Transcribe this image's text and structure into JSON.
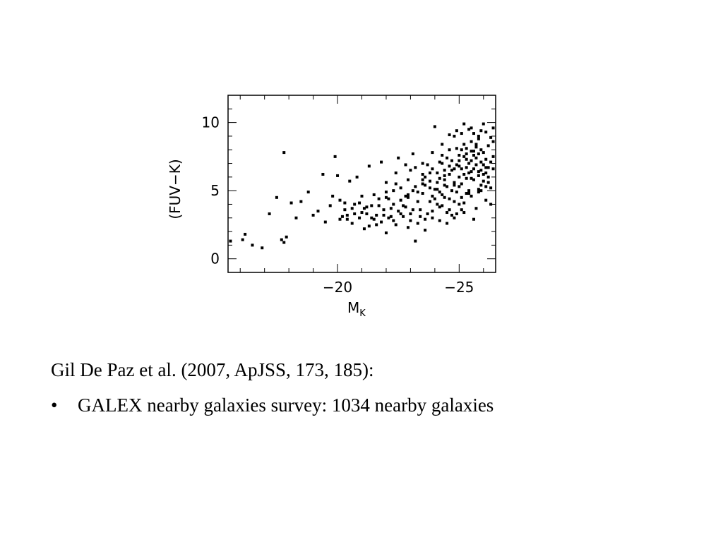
{
  "chart_data": {
    "type": "scatter",
    "title": "",
    "xlabel": "M",
    "xlabel_sub": "K",
    "ylabel": "(FUV−K)",
    "xlim": [
      -15.5,
      -26.5
    ],
    "ylim": [
      -1,
      12
    ],
    "x_ticks": [
      {
        "value": -20,
        "label": "−20"
      },
      {
        "value": -25,
        "label": "−25"
      }
    ],
    "y_ticks": [
      {
        "value": 0,
        "label": "0"
      },
      {
        "value": 5,
        "label": "5"
      },
      {
        "value": 10,
        "label": "10"
      }
    ],
    "minor_x_step": 1,
    "minor_y_step": 1,
    "points": [
      [
        -15.6,
        1.3
      ],
      [
        -16.1,
        1.4
      ],
      [
        -16.2,
        1.8
      ],
      [
        -16.5,
        1.0
      ],
      [
        -16.9,
        0.8
      ],
      [
        -17.2,
        3.3
      ],
      [
        -17.5,
        4.5
      ],
      [
        -17.7,
        1.4
      ],
      [
        -17.8,
        1.2
      ],
      [
        -17.9,
        1.6
      ],
      [
        -17.8,
        7.8
      ],
      [
        -18.1,
        4.1
      ],
      [
        -18.3,
        3.0
      ],
      [
        -18.5,
        4.2
      ],
      [
        -18.8,
        4.9
      ],
      [
        -19.0,
        3.2
      ],
      [
        -19.2,
        3.5
      ],
      [
        -19.4,
        6.2
      ],
      [
        -19.5,
        2.7
      ],
      [
        -19.7,
        3.9
      ],
      [
        -19.9,
        7.5
      ],
      [
        -20.0,
        6.1
      ],
      [
        -20.1,
        4.3
      ],
      [
        -20.2,
        3.1
      ],
      [
        -20.3,
        3.6
      ],
      [
        -20.4,
        2.9
      ],
      [
        -20.5,
        5.7
      ],
      [
        -20.6,
        2.6
      ],
      [
        -20.7,
        3.3
      ],
      [
        -20.8,
        6.0
      ],
      [
        -20.9,
        4.1
      ],
      [
        -21.0,
        3.4
      ],
      [
        -21.1,
        2.2
      ],
      [
        -21.2,
        3.8
      ],
      [
        -21.3,
        6.8
      ],
      [
        -21.4,
        3.0
      ],
      [
        -21.5,
        4.7
      ],
      [
        -21.6,
        2.5
      ],
      [
        -21.7,
        3.9
      ],
      [
        -21.8,
        7.1
      ],
      [
        -21.9,
        3.2
      ],
      [
        -22.0,
        1.9
      ],
      [
        -22.1,
        4.4
      ],
      [
        -22.2,
        3.7
      ],
      [
        -22.3,
        2.8
      ],
      [
        -22.4,
        5.5
      ],
      [
        -22.5,
        7.4
      ],
      [
        -22.6,
        3.3
      ],
      [
        -22.7,
        3.9
      ],
      [
        -22.8,
        4.6
      ],
      [
        -22.9,
        2.3
      ],
      [
        -23.0,
        6.5
      ],
      [
        -23.1,
        3.6
      ],
      [
        -23.2,
        1.3
      ],
      [
        -23.3,
        4.9
      ],
      [
        -23.4,
        3.1
      ],
      [
        -23.5,
        5.8
      ],
      [
        -23.6,
        2.9
      ],
      [
        -23.7,
        6.9
      ],
      [
        -23.8,
        4.2
      ],
      [
        -23.9,
        3.5
      ],
      [
        -24.0,
        9.7
      ],
      [
        -24.1,
        5.1
      ],
      [
        -24.2,
        3.8
      ],
      [
        -24.3,
        7.6
      ],
      [
        -24.4,
        4.5
      ],
      [
        -24.5,
        2.6
      ],
      [
        -24.6,
        6.2
      ],
      [
        -24.7,
        3.2
      ],
      [
        -24.8,
        5.4
      ],
      [
        -24.9,
        8.1
      ],
      [
        -25.0,
        4.0
      ],
      [
        -25.1,
        6.6
      ],
      [
        -25.2,
        3.4
      ],
      [
        -25.3,
        7.3
      ],
      [
        -25.4,
        4.8
      ],
      [
        -25.5,
        5.9
      ],
      [
        -25.6,
        9.2
      ],
      [
        -25.7,
        3.7
      ],
      [
        -25.8,
        6.4
      ],
      [
        -25.9,
        5.0
      ],
      [
        -26.0,
        7.8
      ],
      [
        -26.1,
        4.3
      ],
      [
        -26.2,
        6.7
      ],
      [
        -26.3,
        5.2
      ],
      [
        -26.4,
        9.6
      ],
      [
        -26.5,
        6.0
      ],
      [
        -20.3,
        4.1
      ],
      [
        -20.6,
        3.7
      ],
      [
        -20.9,
        3.0
      ],
      [
        -21.0,
        4.6
      ],
      [
        -21.2,
        3.3
      ],
      [
        -21.4,
        3.9
      ],
      [
        -21.5,
        2.9
      ],
      [
        -21.7,
        4.4
      ],
      [
        -21.9,
        3.6
      ],
      [
        -22.0,
        4.9
      ],
      [
        -22.2,
        3.1
      ],
      [
        -22.3,
        4.0
      ],
      [
        -22.5,
        3.5
      ],
      [
        -22.6,
        5.2
      ],
      [
        -22.8,
        3.8
      ],
      [
        -22.9,
        4.5
      ],
      [
        -23.0,
        2.8
      ],
      [
        -23.1,
        5.0
      ],
      [
        -23.3,
        4.2
      ],
      [
        -23.4,
        3.6
      ],
      [
        -23.5,
        4.8
      ],
      [
        -23.6,
        5.4
      ],
      [
        -23.7,
        3.3
      ],
      [
        -23.8,
        5.7
      ],
      [
        -23.9,
        4.6
      ],
      [
        -24.0,
        5.1
      ],
      [
        -24.1,
        4.0
      ],
      [
        -24.2,
        5.9
      ],
      [
        -24.3,
        4.7
      ],
      [
        -24.4,
        6.1
      ],
      [
        -24.5,
        5.3
      ],
      [
        -24.6,
        4.4
      ],
      [
        -24.7,
        6.5
      ],
      [
        -24.8,
        5.6
      ],
      [
        -24.9,
        4.9
      ],
      [
        -25.0,
        6.8
      ],
      [
        -25.1,
        5.5
      ],
      [
        -25.2,
        6.2
      ],
      [
        -25.3,
        4.8
      ],
      [
        -25.4,
        7.0
      ],
      [
        -25.5,
        6.4
      ],
      [
        -25.6,
        5.8
      ],
      [
        -25.7,
        7.4
      ],
      [
        -25.8,
        6.1
      ],
      [
        -25.9,
        5.4
      ],
      [
        -26.0,
        6.9
      ],
      [
        -26.1,
        6.3
      ],
      [
        -26.2,
        5.6
      ],
      [
        -26.3,
        7.1
      ],
      [
        -26.4,
        6.6
      ],
      [
        -24.3,
        7.0
      ],
      [
        -24.6,
        8.0
      ],
      [
        -24.8,
        9.0
      ],
      [
        -25.0,
        7.6
      ],
      [
        -25.2,
        8.4
      ],
      [
        -25.4,
        9.5
      ],
      [
        -25.6,
        7.9
      ],
      [
        -25.8,
        8.8
      ],
      [
        -26.0,
        9.9
      ],
      [
        -26.2,
        8.3
      ],
      [
        -26.4,
        7.5
      ],
      [
        -25.1,
        9.2
      ],
      [
        -25.5,
        8.6
      ],
      [
        -25.9,
        9.4
      ],
      [
        -26.3,
        8.9
      ],
      [
        -24.9,
        6.9
      ],
      [
        -25.3,
        7.7
      ],
      [
        -25.7,
        8.2
      ],
      [
        -26.1,
        7.3
      ],
      [
        -26.5,
        8.0
      ],
      [
        -23.6,
        6.0
      ],
      [
        -23.9,
        6.6
      ],
      [
        -24.1,
        6.3
      ],
      [
        -24.4,
        5.8
      ],
      [
        -24.7,
        7.2
      ],
      [
        -25.0,
        6.0
      ],
      [
        -25.3,
        5.9
      ],
      [
        -25.6,
        6.6
      ],
      [
        -25.9,
        7.1
      ],
      [
        -26.2,
        6.0
      ],
      [
        -24.5,
        7.4
      ],
      [
        -25.8,
        5.1
      ],
      [
        -26.0,
        5.7
      ],
      [
        -25.1,
        4.5
      ],
      [
        -24.8,
        4.2
      ],
      [
        -24.2,
        4.9
      ],
      [
        -23.8,
        6.3
      ],
      [
        -23.5,
        5.5
      ],
      [
        -23.2,
        6.7
      ],
      [
        -22.9,
        5.8
      ],
      [
        -19.8,
        4.6
      ],
      [
        -20.1,
        2.9
      ],
      [
        -20.4,
        3.2
      ],
      [
        -20.7,
        4.0
      ],
      [
        -21.1,
        3.7
      ],
      [
        -21.3,
        2.4
      ],
      [
        -21.6,
        3.2
      ],
      [
        -21.8,
        2.7
      ],
      [
        -22.1,
        3.0
      ],
      [
        -22.4,
        2.5
      ],
      [
        -22.7,
        3.1
      ],
      [
        -23.0,
        3.3
      ],
      [
        -23.3,
        2.6
      ],
      [
        -23.6,
        2.1
      ],
      [
        -23.9,
        3.0
      ],
      [
        -24.2,
        2.8
      ],
      [
        -24.5,
        3.4
      ],
      [
        -24.8,
        3.0
      ],
      [
        -25.1,
        3.6
      ],
      [
        -25.6,
        2.9
      ],
      [
        -22.0,
        5.6
      ],
      [
        -22.4,
        6.3
      ],
      [
        -22.8,
        6.9
      ],
      [
        -23.1,
        7.7
      ],
      [
        -23.5,
        7.0
      ],
      [
        -23.9,
        7.8
      ],
      [
        -24.3,
        8.4
      ],
      [
        -24.6,
        9.1
      ],
      [
        -24.9,
        9.4
      ],
      [
        -25.2,
        9.9
      ],
      [
        -25.5,
        9.6
      ],
      [
        -25.8,
        9.0
      ],
      [
        -26.1,
        9.3
      ],
      [
        -26.4,
        8.6
      ],
      [
        -26.6,
        6.8
      ],
      [
        -26.7,
        5.8
      ],
      [
        -26.7,
        5.1
      ],
      [
        -26.8,
        4.7
      ],
      [
        -26.5,
        4.4
      ],
      [
        -26.3,
        4.0
      ],
      [
        -24.0,
        4.4
      ],
      [
        -24.3,
        3.9
      ],
      [
        -24.6,
        3.6
      ],
      [
        -24.9,
        3.3
      ],
      [
        -25.2,
        4.1
      ],
      [
        -25.5,
        4.6
      ],
      [
        -25.8,
        4.9
      ],
      [
        -26.1,
        5.3
      ],
      [
        -25.4,
        5.0
      ],
      [
        -25.0,
        5.3
      ],
      [
        -24.7,
        5.0
      ],
      [
        -24.4,
        5.4
      ],
      [
        -24.1,
        5.6
      ],
      [
        -23.8,
        5.2
      ],
      [
        -23.5,
        6.2
      ],
      [
        -23.2,
        5.3
      ],
      [
        -22.9,
        4.7
      ],
      [
        -22.6,
        4.3
      ],
      [
        -22.3,
        5.0
      ],
      [
        -22.0,
        4.5
      ],
      [
        -25.3,
        6.7
      ],
      [
        -25.5,
        7.2
      ],
      [
        -25.7,
        6.9
      ],
      [
        -25.9,
        6.5
      ],
      [
        -26.1,
        6.7
      ],
      [
        -25.4,
        6.3
      ],
      [
        -25.6,
        7.6
      ],
      [
        -25.8,
        7.7
      ],
      [
        -26.0,
        6.2
      ],
      [
        -25.2,
        7.5
      ],
      [
        -25.0,
        7.2
      ],
      [
        -24.8,
        6.6
      ],
      [
        -24.6,
        6.8
      ],
      [
        -24.4,
        6.5
      ],
      [
        -24.2,
        7.1
      ],
      [
        -25.1,
        8.0
      ],
      [
        -25.3,
        8.1
      ],
      [
        -25.5,
        7.9
      ],
      [
        -25.7,
        8.4
      ],
      [
        -25.9,
        8.0
      ]
    ]
  },
  "caption": {
    "line1": "Gil De Paz et al. (2007, ApJSS, 173, 185):",
    "bullet_symbol": "•",
    "bullet1": "GALEX nearby galaxies survey: 1034 nearby galaxies"
  }
}
